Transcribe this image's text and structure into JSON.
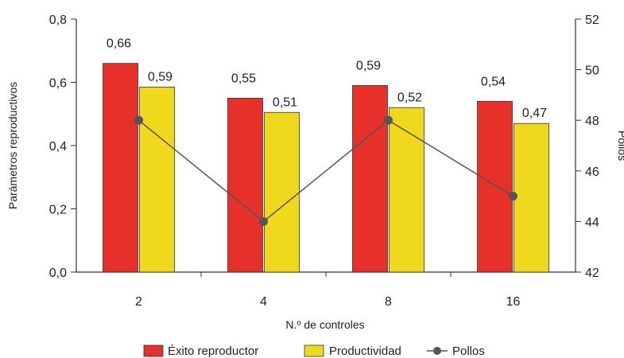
{
  "chart_data": {
    "type": "bar",
    "categories": [
      "2",
      "4",
      "8",
      "16"
    ],
    "series": [
      {
        "name": "Éxito reproductor",
        "axis": "left",
        "kind": "bar",
        "color": "#e8302a",
        "values": [
          0.66,
          0.55,
          0.59,
          0.54
        ],
        "labels": [
          "0,66",
          "0,55",
          "0,59",
          "0,54"
        ]
      },
      {
        "name": "Productividad",
        "axis": "left",
        "kind": "bar",
        "color": "#f0d81c",
        "values": [
          0.585,
          0.505,
          0.52,
          0.47
        ],
        "labels": [
          "0,59",
          "0,51",
          "0,52",
          "0,47"
        ]
      },
      {
        "name": "Pollos",
        "axis": "right",
        "kind": "line",
        "color": "#555555",
        "values": [
          48,
          44,
          48,
          45
        ]
      }
    ],
    "xlabel": "N.º de controles",
    "ylabel": "Parámetros reproductivos",
    "y2label": "Pollos",
    "ylim": [
      0,
      0.8
    ],
    "y2lim": [
      42,
      52
    ],
    "yticks": [
      "0,0",
      "0,2",
      "0,4",
      "0,6",
      "0,8"
    ],
    "y2ticks": [
      "42",
      "44",
      "46",
      "48",
      "50",
      "52"
    ],
    "grid": false,
    "legend_position": "bottom"
  }
}
